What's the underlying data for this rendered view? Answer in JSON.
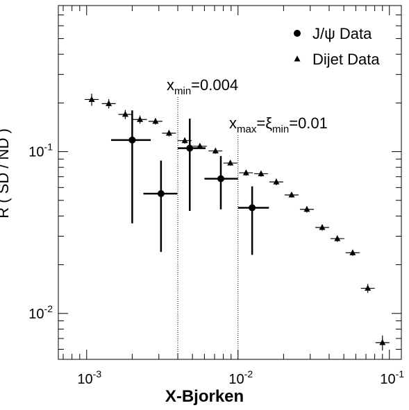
{
  "chart_data": {
    "type": "scatter",
    "xlabel": "X-Bjorken",
    "ylabel": "R ( SD / ND )",
    "xscale": "log",
    "yscale": "log",
    "xlim": [
      0.00065,
      0.12
    ],
    "ylim": [
      0.0052,
      0.8
    ],
    "grid": false,
    "legend_position": "top-right",
    "x_ticks": [
      {
        "value": 0.001,
        "base": "10",
        "exp": "-3"
      },
      {
        "value": 0.01,
        "base": "10",
        "exp": "-2"
      },
      {
        "value": 0.1,
        "base": "10",
        "exp": "-1"
      }
    ],
    "y_ticks": [
      {
        "value": 0.01,
        "base": "10",
        "exp": "-2"
      },
      {
        "value": 0.1,
        "base": "10",
        "exp": "-1"
      }
    ],
    "series": [
      {
        "name": "J/ψ Data",
        "marker": "circle",
        "points": [
          {
            "x": 0.002,
            "y": 0.118,
            "xerr_lo": 0.00055,
            "xerr_hi": 0.00065,
            "y_lo": 0.036,
            "y_hi": 0.18
          },
          {
            "x": 0.0031,
            "y": 0.055,
            "xerr_lo": 0.00073,
            "xerr_hi": 0.00087,
            "y_lo": 0.024,
            "y_hi": 0.088
          },
          {
            "x": 0.0048,
            "y": 0.105,
            "xerr_lo": 0.0008,
            "xerr_hi": 0.0013,
            "y_lo": 0.043,
            "y_hi": 0.16
          },
          {
            "x": 0.0077,
            "y": 0.068,
            "xerr_lo": 0.0017,
            "xerr_hi": 0.0023,
            "y_lo": 0.044,
            "y_hi": 0.094
          },
          {
            "x": 0.0124,
            "y": 0.045,
            "xerr_lo": 0.0024,
            "xerr_hi": 0.0036,
            "y_lo": 0.023,
            "y_hi": 0.061
          }
        ]
      },
      {
        "name": "Dijet Data",
        "marker": "triangle",
        "points": [
          {
            "x": 0.00108,
            "y": 0.21,
            "yerr": 0.018
          },
          {
            "x": 0.0014,
            "y": 0.198,
            "yerr": 0.013
          },
          {
            "x": 0.0018,
            "y": 0.17,
            "yerr": 0.011
          },
          {
            "x": 0.00225,
            "y": 0.158,
            "yerr": 0.009
          },
          {
            "x": 0.00285,
            "y": 0.154,
            "yerr": 0.007
          },
          {
            "x": 0.0035,
            "y": 0.13,
            "yerr": 0.006
          },
          {
            "x": 0.00445,
            "y": 0.117,
            "yerr": 0.005
          },
          {
            "x": 0.0056,
            "y": 0.108,
            "yerr": 0.004
          },
          {
            "x": 0.0071,
            "y": 0.101,
            "yerr": 0.004
          },
          {
            "x": 0.0089,
            "y": 0.085,
            "yerr": 0.003
          },
          {
            "x": 0.0113,
            "y": 0.074,
            "yerr": 0.003
          },
          {
            "x": 0.0142,
            "y": 0.073,
            "yerr": 0.003
          },
          {
            "x": 0.0179,
            "y": 0.065,
            "yerr": 0.003
          },
          {
            "x": 0.0226,
            "y": 0.054,
            "yerr": 0.002
          },
          {
            "x": 0.0285,
            "y": 0.044,
            "yerr": 0.002
          },
          {
            "x": 0.036,
            "y": 0.034,
            "yerr": 0.0015
          },
          {
            "x": 0.0453,
            "y": 0.029,
            "yerr": 0.0013
          },
          {
            "x": 0.0572,
            "y": 0.0237,
            "yerr": 0.001
          },
          {
            "x": 0.072,
            "y": 0.0143,
            "yerr": 0.0009
          },
          {
            "x": 0.09,
            "y": 0.0066,
            "yerr": 0.0007
          }
        ]
      }
    ],
    "annotations": [
      {
        "x": 0.004,
        "label_main": "x",
        "label_sub": "min",
        "label_rest": "=0.004"
      },
      {
        "x": 0.01,
        "label_main": "x",
        "label_sub": "max",
        "label_mid": "=ξ",
        "label_sub2": "min",
        "label_rest": "=0.01"
      }
    ]
  }
}
